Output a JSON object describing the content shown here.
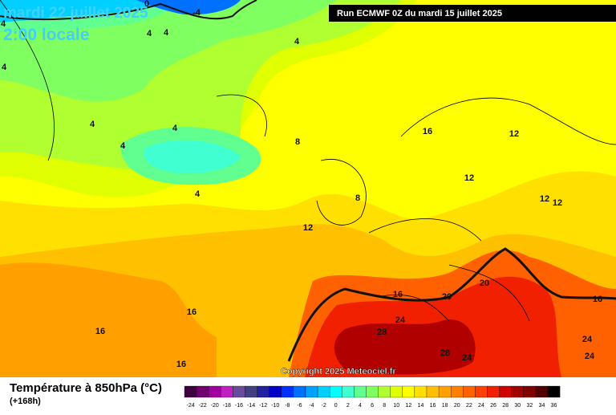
{
  "header": {
    "title": "mardi 22 juillet 2025",
    "subtitle": "2:00 locale",
    "run": "Run ECMWF 0Z du mardi 15 juillet 2025"
  },
  "copyright": "Copyright 2025 Meteociel.fr",
  "legend": {
    "title": "Température à 850hPa (°C)",
    "lead": "(+168h)",
    "ticks": [
      -24,
      -22,
      -20,
      -18,
      -16,
      -14,
      -12,
      -10,
      -8,
      -6,
      -4,
      -2,
      0,
      2,
      4,
      6,
      8,
      10,
      12,
      14,
      16,
      18,
      20,
      22,
      24,
      26,
      28,
      30,
      32,
      34,
      36
    ],
    "colors": [
      "#400040",
      "#700070",
      "#a000a0",
      "#c020c0",
      "#6a4a9a",
      "#404080",
      "#2020a0",
      "#0000c8",
      "#0030ff",
      "#0070ff",
      "#00a0ff",
      "#00d0ff",
      "#00ffff",
      "#40ffd0",
      "#60ff90",
      "#80ff60",
      "#b0ff30",
      "#e0ff00",
      "#ffff00",
      "#ffe000",
      "#ffc000",
      "#ffa000",
      "#ff8000",
      "#ff6000",
      "#ff4000",
      "#f02000",
      "#d00000",
      "#a00000",
      "#800000",
      "#500000",
      "#000000"
    ]
  },
  "contour_labels": [
    0,
    -4,
    4,
    4,
    4,
    4,
    4,
    4,
    4,
    4,
    4,
    8,
    8,
    12,
    16,
    12,
    12,
    12,
    12,
    16,
    20,
    20,
    16,
    24,
    28,
    28,
    24,
    24,
    24,
    16,
    16,
    16
  ]
}
